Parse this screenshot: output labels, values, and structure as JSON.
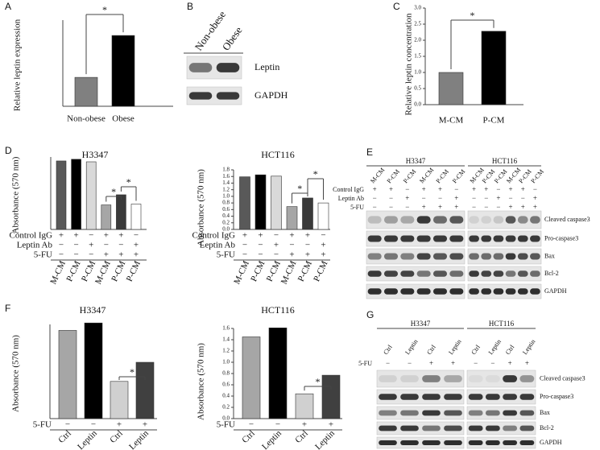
{
  "panel_labels": [
    "A",
    "B",
    "C",
    "D",
    "E",
    "F",
    "G"
  ],
  "chart_data": [
    {
      "type": "bar",
      "ylabel": "Relative leptin expression",
      "categories": [
        "Non-obese",
        "Obese"
      ],
      "values": [
        1,
        2.45
      ],
      "colors": [
        "#808080",
        "#000000"
      ],
      "ylim": [
        0,
        3.4
      ],
      "annotations": [
        "*"
      ]
    },
    {
      "type": "bar",
      "ylabel": "Relative leptin concentration",
      "categories": [
        "M-CM",
        "P-CM"
      ],
      "values": [
        1,
        2.28
      ],
      "colors": [
        "#808080",
        "#000000"
      ],
      "ylim": [
        0,
        3
      ],
      "yticks": [
        {
          "value": 0,
          "label": "0.0"
        },
        0.5,
        {
          "value": 1,
          "label": "1.0"
        },
        1.5,
        {
          "value": 2,
          "label": "2.0"
        },
        2.5,
        {
          "value": 3,
          "label": "3.0"
        }
      ],
      "annotations": [
        "*"
      ]
    },
    {
      "type": "bar",
      "title": "H3347",
      "ylabel": "Absorbance (570 nm)",
      "categories": [
        "M-CM",
        "P-CM",
        "P-CM",
        "M-CM",
        "P-CM",
        "P-CM"
      ],
      "values": [
        0.81,
        0.83,
        0.8,
        0.29,
        0.41,
        0.3
      ],
      "colors": [
        "#595959",
        "#000000",
        "#d9d9d9",
        "#a6a6a6",
        "#3a3a3a",
        "#ffffff"
      ],
      "ylim": [
        0,
        1
      ],
      "conditions": [
        {
          "name": "Control IgG",
          "signs": [
            "+",
            "+",
            "−",
            "+",
            "+",
            "−"
          ]
        },
        {
          "name": "Leptin Ab",
          "signs": [
            "−",
            "−",
            "+",
            "−",
            "−",
            "+"
          ]
        },
        {
          "name": "5-FU",
          "signs": [
            "−",
            "−",
            "−",
            "+",
            "+",
            "+"
          ]
        }
      ],
      "annotations": [
        "*",
        "*"
      ]
    },
    {
      "type": "bar",
      "title": "HCT116",
      "ylabel": "Absorbance (570 nm)",
      "categories": [
        "M-CM",
        "P-CM",
        "P-CM",
        "M-CM",
        "P-CM",
        "P-CM"
      ],
      "values": [
        1.59,
        1.65,
        1.61,
        0.69,
        0.95,
        0.8
      ],
      "colors": [
        "#595959",
        "#000000",
        "#d9d9d9",
        "#a6a6a6",
        "#3a3a3a",
        "#ffffff"
      ],
      "ylim": [
        0,
        1.8
      ],
      "yticks": [
        {
          "value": 0,
          "label": "0.0"
        },
        0.2,
        0.4,
        0.6,
        0.8,
        {
          "value": 1,
          "label": "1.0"
        },
        1.2,
        1.4,
        1.6,
        1.8
      ],
      "conditions": [
        {
          "name": "Control IgG",
          "signs": [
            "+",
            "+",
            "−",
            "+",
            "+",
            "−"
          ]
        },
        {
          "name": "Leptin Ab",
          "signs": [
            "−",
            "−",
            "+",
            "−",
            "−",
            "+"
          ]
        },
        {
          "name": "5-FU",
          "signs": [
            "−",
            "−",
            "−",
            "+",
            "+",
            "+"
          ]
        }
      ],
      "annotations": [
        "*",
        "*"
      ]
    },
    {
      "type": "bar",
      "title": "H3347",
      "ylabel": "Absorbance (570 nm)",
      "categories": [
        "Ctrl",
        "Leptin",
        "Ctrl",
        "Leptin"
      ],
      "values": [
        0.83,
        0.9,
        0.35,
        0.53
      ],
      "colors": [
        "#a6a6a6",
        "#000000",
        "#d0d0d0",
        "#404040"
      ],
      "ylim": [
        0,
        1
      ],
      "conditions": [
        {
          "name": "5-FU",
          "signs": [
            "−",
            "−",
            "+",
            "+"
          ]
        }
      ],
      "annotations": [
        "*"
      ]
    },
    {
      "type": "bar",
      "title": "HCT116",
      "ylabel": "Absorbance (570 nm)",
      "categories": [
        "Ctrl",
        "Leptin",
        "Ctrl",
        "Leptin"
      ],
      "values": [
        1.45,
        1.61,
        0.44,
        0.77
      ],
      "colors": [
        "#a6a6a6",
        "#000000",
        "#d0d0d0",
        "#404040"
      ],
      "ylim": [
        0,
        1.6
      ],
      "yticks": [
        {
          "value": 0,
          "label": "0.0"
        },
        0.2,
        0.4,
        0.6,
        0.8,
        {
          "value": 1,
          "label": "1.0"
        },
        1.2,
        1.4,
        1.6
      ],
      "conditions": [
        {
          "name": "5-FU",
          "signs": [
            "−",
            "−",
            "+",
            "+"
          ]
        }
      ],
      "annotations": [
        "*"
      ]
    }
  ],
  "blots": [
    {
      "groups": [
        {
          "lanes": [
            "Non-obese",
            "Obese"
          ]
        }
      ],
      "bands": [
        "Leptin",
        "GAPDH"
      ]
    },
    {
      "groups": [
        {
          "name": "H3347",
          "lanes": [
            "M-CM",
            "P-CM",
            "P-CM",
            "M-CM",
            "P-CM",
            "P-CM"
          ]
        },
        {
          "name": "HCT116",
          "lanes": [
            "M-CM",
            "P-CM",
            "P-CM",
            "M-CM",
            "P-CM",
            "P-CM"
          ]
        }
      ],
      "conditions": [
        {
          "name": "Control IgG",
          "signs": [
            "+",
            "+",
            "−",
            "+",
            "+",
            "−",
            "+",
            "+",
            "−",
            "+",
            "+",
            "−"
          ]
        },
        {
          "name": "Leptin Ab",
          "signs": [
            "−",
            "−",
            "+",
            "−",
            "−",
            "+",
            "−",
            "−",
            "+",
            "−",
            "−",
            "+"
          ]
        },
        {
          "name": "5-FU",
          "signs": [
            "−",
            "−",
            "−",
            "+",
            "+",
            "+",
            "−",
            "−",
            "−",
            "+",
            "+",
            "+"
          ]
        }
      ],
      "bands": [
        "Cleaved caspase3",
        "Pro-caspase3",
        "Bax",
        "Bcl-2",
        "GAPDH"
      ]
    },
    {
      "groups": [
        {
          "name": "H3347",
          "lanes": [
            "Ctrl",
            "Leptin",
            "Ctrl",
            "Leptin"
          ]
        },
        {
          "name": "HCT116",
          "lanes": [
            "Ctrl",
            "Leptin",
            "Ctrl",
            "Leptin"
          ]
        }
      ],
      "conditions": [
        {
          "name": "5-FU",
          "signs": [
            "−",
            "−",
            "+",
            "+",
            "−",
            "−",
            "+",
            "+"
          ]
        }
      ],
      "bands": [
        "Cleaved caspase3",
        "Pro-caspase3",
        "Bax",
        "Bcl-2",
        "GAPDH"
      ]
    }
  ]
}
